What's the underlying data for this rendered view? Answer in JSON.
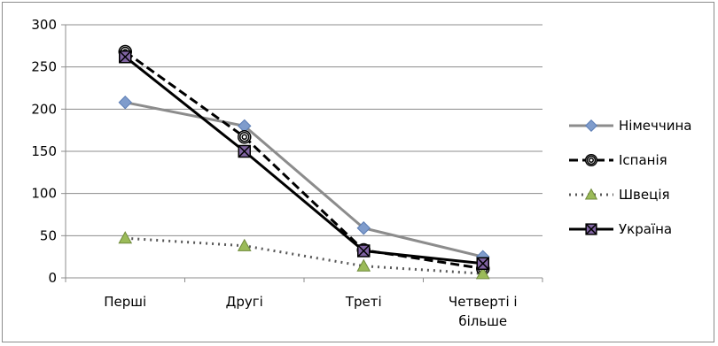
{
  "chart_data": {
    "type": "line",
    "categories": [
      [
        "Перші"
      ],
      [
        "Другі"
      ],
      [
        "Треті"
      ],
      [
        "Четверті і",
        "більше"
      ]
    ],
    "ylim": [
      0,
      300
    ],
    "yticks": [
      0,
      50,
      100,
      150,
      200,
      250,
      300
    ],
    "grid": true,
    "legend_position": "right",
    "series": [
      {
        "name": "Німеччина",
        "values": [
          208,
          180,
          59,
          25
        ],
        "color": "#8c8c8c",
        "dash": "solid",
        "marker": "diamond",
        "marker_color": "#7f9ccc"
      },
      {
        "name": "Іспанія",
        "values": [
          268,
          167,
          33,
          11
        ],
        "color": "#000000",
        "dash": "dashed",
        "marker": "circle-target",
        "marker_color": "#000000"
      },
      {
        "name": "Швеція",
        "values": [
          47,
          38,
          14,
          5
        ],
        "color": "#595959",
        "dash": "dotted",
        "marker": "triangle",
        "marker_color": "#9bbb59"
      },
      {
        "name": "Україна",
        "values": [
          262,
          150,
          32,
          17
        ],
        "color": "#000000",
        "dash": "solid",
        "marker": "square-x",
        "marker_color": "#8064a2"
      }
    ]
  }
}
